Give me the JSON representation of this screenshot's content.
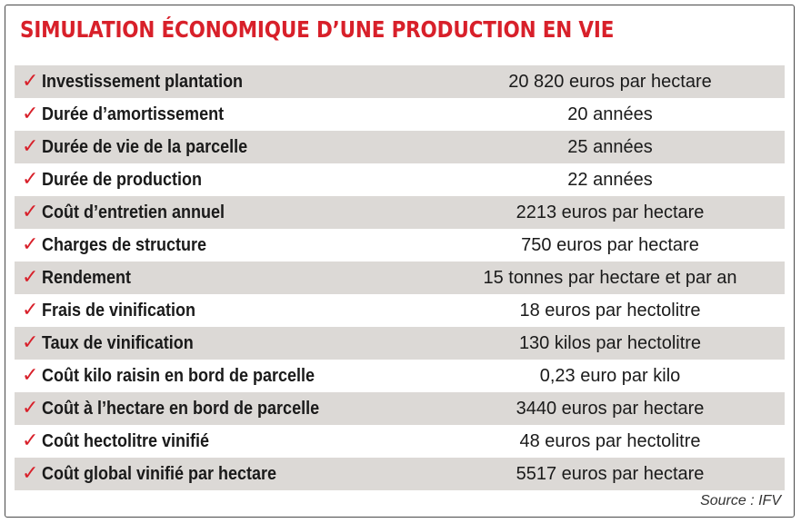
{
  "title": "SIMULATION ÉCONOMIQUE D’UNE PRODUCTION EN VIE",
  "check_icon": "check-mark-icon",
  "colors": {
    "title": "#d8202a",
    "check": "#d8202a",
    "shade": "#dcd9d6"
  },
  "rows": [
    {
      "label": "Investissement plantation",
      "value": "20 820 euros par hectare"
    },
    {
      "label": "Durée d’amortissement",
      "value": "20 années"
    },
    {
      "label": "Durée de vie de la parcelle",
      "value": "25 années"
    },
    {
      "label": "Durée de production",
      "value": "22 années"
    },
    {
      "label": "Coût d’entretien annuel",
      "value": "2213 euros par hectare"
    },
    {
      "label": "Charges de structure",
      "value": "750 euros par hectare"
    },
    {
      "label": "Rendement",
      "value": "15 tonnes par hectare et par an"
    },
    {
      "label": "Frais de vinification",
      "value": "18 euros par hectolitre"
    },
    {
      "label": "Taux de vinification",
      "value": "130 kilos par hectolitre"
    },
    {
      "label": "Coût kilo raisin en bord de parcelle",
      "value": "0,23 euro par kilo"
    },
    {
      "label": "Coût à l’hectare en bord de parcelle",
      "value": "3440 euros par hectare"
    },
    {
      "label": "Coût hectolitre vinifié",
      "value": "48 euros par hectolitre"
    },
    {
      "label": "Coût global vinifié par hectare",
      "value": "5517 euros par hectare"
    }
  ],
  "source": "Source : IFV"
}
